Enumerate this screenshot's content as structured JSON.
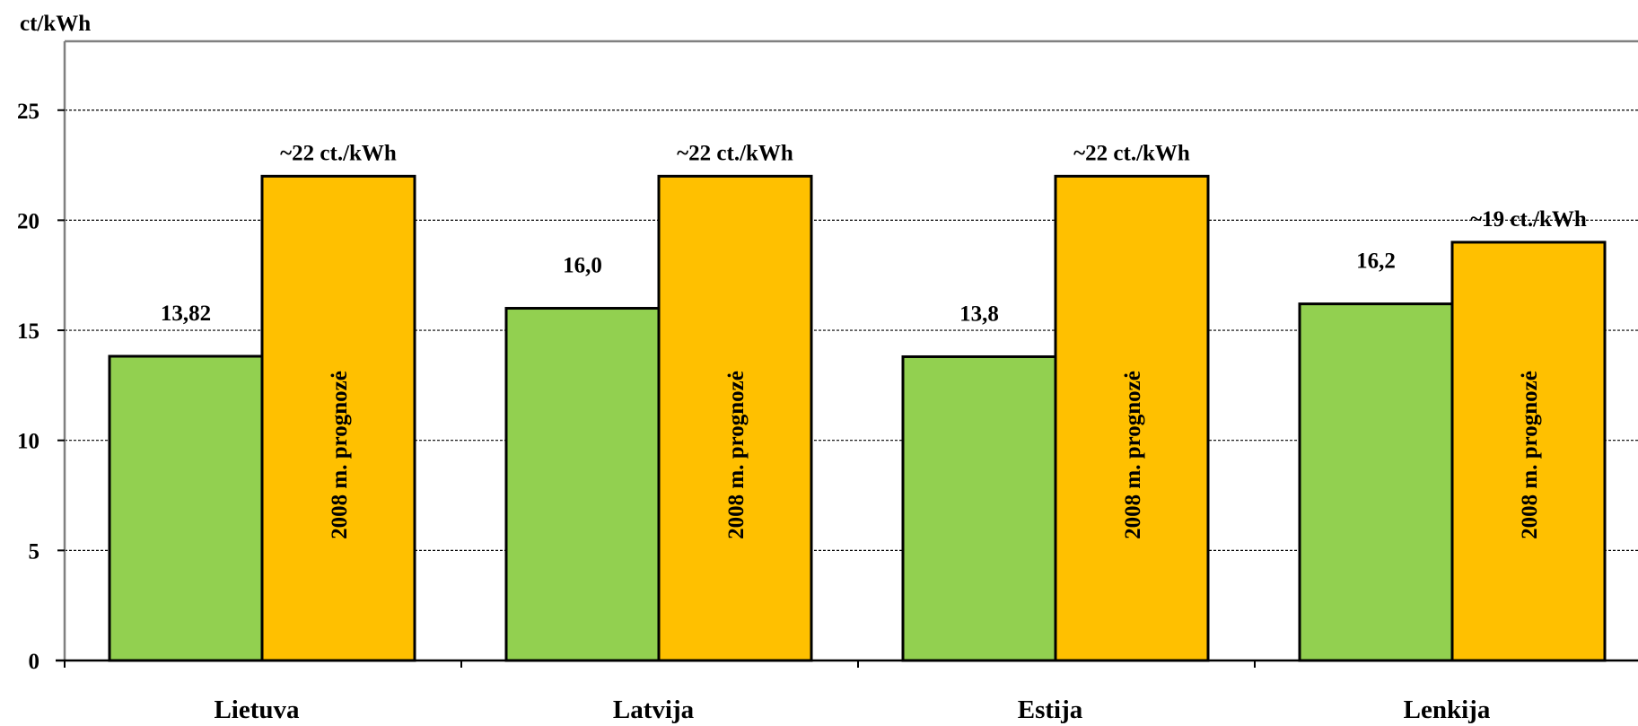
{
  "chart_data": {
    "type": "bar",
    "ylabel": "ct/kWh",
    "ylim": [
      0,
      28
    ],
    "yticks": [
      0,
      5,
      10,
      15,
      20,
      25
    ],
    "grid": true,
    "categories": [
      "Lietuva",
      "Latvija",
      "Estija",
      "Lenkija"
    ],
    "series": [
      {
        "values": [
          13.82,
          16.0,
          13.8,
          16.2
        ],
        "data_labels": [
          "13,82",
          "16,0",
          "13,8",
          "16,2"
        ],
        "color": "#92d050"
      },
      {
        "values": [
          22,
          22,
          22,
          19
        ],
        "data_labels": [
          "~22 ct./kWh",
          "~22 ct./kWh",
          "~22 ct./kWh",
          "~19 ct./kWh"
        ],
        "inner_labels": [
          "2008 m. prognozė",
          "2008 m. prognozė",
          "2008 m. prognozė",
          "2008 m. prognozė"
        ],
        "color": "#ffc000"
      }
    ]
  }
}
